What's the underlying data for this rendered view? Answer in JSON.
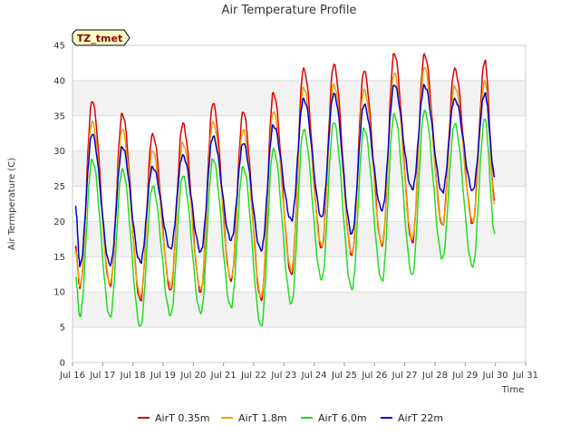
{
  "chart_data": {
    "type": "line",
    "title": "Air Temperature Profile",
    "xlabel": "Time",
    "ylabel": "Air Termperature (C)",
    "tag": "TZ_tmet",
    "xlim": [
      16,
      31
    ],
    "ylim": [
      0,
      45
    ],
    "x_ticks": [
      16,
      17,
      18,
      19,
      20,
      21,
      22,
      23,
      24,
      25,
      26,
      27,
      28,
      29,
      30,
      31
    ],
    "x_tick_labels": [
      "Jul 16",
      "Jul 17",
      "Jul 18",
      "Jul 19",
      "Jul 20",
      "Jul 21",
      "Jul 22",
      "Jul 23",
      "Jul 24",
      "Jul 25",
      "Jul 26",
      "Jul 27",
      "Jul 28",
      "Jul 29",
      "Jul 30",
      "Jul 31"
    ],
    "y_ticks": [
      0,
      5,
      10,
      15,
      20,
      25,
      30,
      35,
      40,
      45
    ],
    "y_tick_labels": [
      "0",
      "5",
      "10",
      "15",
      "20",
      "25",
      "30",
      "35",
      "40",
      "45"
    ],
    "grid": true,
    "legend_position": "bottom",
    "daily_min_x": [
      16.25,
      17.25,
      18.25,
      19.25,
      20.25,
      21.25,
      22.25,
      23.25,
      24.25,
      25.25,
      26.25,
      27.25,
      28.25,
      29.25
    ],
    "daily_max_x": [
      16.65,
      17.65,
      18.65,
      19.65,
      20.65,
      21.65,
      22.65,
      23.65,
      24.65,
      25.65,
      26.65,
      27.65,
      28.65,
      29.65
    ],
    "series": [
      {
        "name": "AirT 0.35m",
        "color": "#dd0000",
        "start": 16.1,
        "start_value": 16.2,
        "end": 29.98,
        "end_value": 23.0,
        "mins": [
          10.5,
          10.8,
          8.8,
          10.3,
          10.0,
          11.5,
          8.8,
          12.5,
          16.3,
          15.2,
          16.5,
          17.0,
          19.5,
          19.8
        ],
        "maxs": [
          37.0,
          35.3,
          32.5,
          34.0,
          36.7,
          35.5,
          38.3,
          41.8,
          42.3,
          41.3,
          43.8,
          43.8,
          41.8,
          42.8
        ]
      },
      {
        "name": "AirT 1.8m",
        "color": "#f0a000",
        "start": 16.1,
        "start_value": 15.8,
        "end": 29.98,
        "end_value": 22.5,
        "mins": [
          11.0,
          11.2,
          9.3,
          10.8,
          10.5,
          12.0,
          9.3,
          13.0,
          16.5,
          15.5,
          16.8,
          17.5,
          19.5,
          20.0
        ],
        "maxs": [
          34.2,
          33.0,
          30.0,
          31.2,
          34.2,
          33.0,
          35.5,
          39.0,
          39.5,
          38.8,
          41.0,
          41.8,
          39.2,
          40.0
        ]
      },
      {
        "name": "AirT 6.0m",
        "color": "#22dd22",
        "start": 16.1,
        "start_value": 12.0,
        "end": 29.98,
        "end_value": 18.2,
        "mins": [
          6.5,
          6.5,
          5.2,
          6.7,
          6.9,
          7.8,
          5.2,
          8.4,
          11.7,
          10.3,
          11.6,
          12.5,
          14.8,
          13.5
        ],
        "maxs": [
          28.8,
          27.5,
          25.0,
          26.4,
          28.8,
          27.8,
          30.4,
          33.0,
          34.0,
          33.2,
          35.3,
          35.8,
          33.8,
          34.5
        ]
      },
      {
        "name": "AirT 22m",
        "color": "#0000cc",
        "start": 16.1,
        "start_value": 22.0,
        "end": 29.98,
        "end_value": 26.5,
        "mins": [
          13.7,
          13.7,
          14.2,
          16.2,
          15.8,
          17.3,
          15.8,
          20.2,
          20.7,
          18.3,
          21.5,
          24.5,
          24.2,
          24.5
        ],
        "maxs": [
          32.3,
          30.5,
          27.8,
          29.5,
          32.0,
          31.0,
          33.6,
          37.5,
          38.2,
          36.5,
          39.3,
          39.3,
          37.5,
          38.2
        ]
      }
    ]
  }
}
